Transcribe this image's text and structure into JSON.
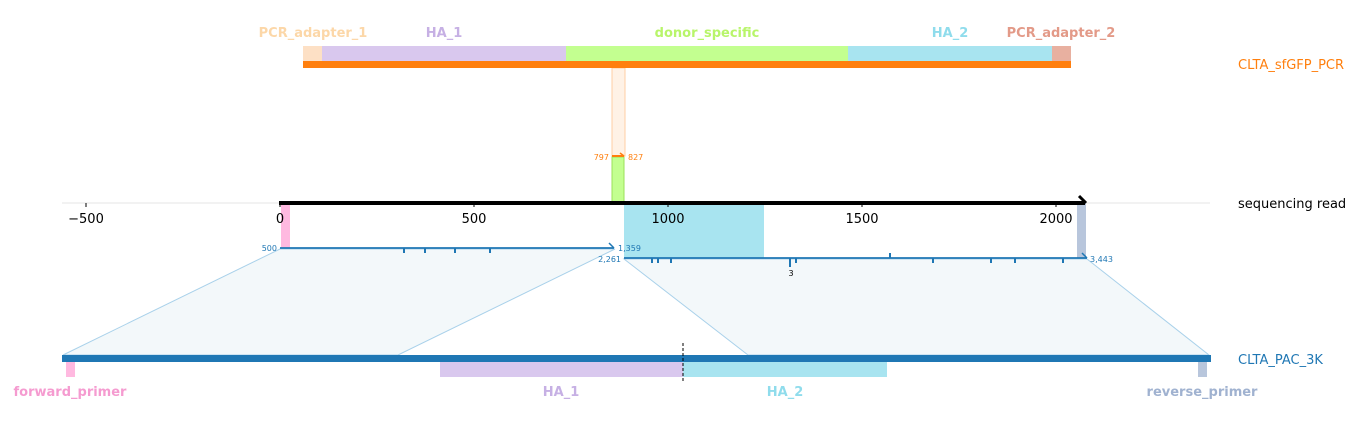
{
  "top_construct": {
    "name": "CLTA_sfGFP_PCR",
    "features": [
      {
        "id": "pcr_adapter_1",
        "label": "PCR_adapter_1"
      },
      {
        "id": "ha_1",
        "label": "HA_1"
      },
      {
        "id": "donor_specific",
        "label": "donor_specific"
      },
      {
        "id": "ha_2",
        "label": "HA_2"
      },
      {
        "id": "pcr_adapter_2",
        "label": "PCR_adapter_2"
      }
    ],
    "alignment_start": "797",
    "alignment_end": "827"
  },
  "sequencing_read": {
    "name": "sequencing read",
    "axis_ticks": [
      "−500",
      "0",
      "500",
      "1000",
      "1500",
      "2000"
    ],
    "alignment_1": {
      "start": "500",
      "end": "1,359"
    },
    "alignment_2": {
      "start": "2,261",
      "end": "3,443",
      "insertion_count": "3"
    }
  },
  "bottom_construct": {
    "name": "CLTA_PAC_3K",
    "features": [
      {
        "id": "forward_primer",
        "label": "forward_primer"
      },
      {
        "id": "ha_1",
        "label": "HA_1"
      },
      {
        "id": "ha_2",
        "label": "HA_2"
      },
      {
        "id": "reverse_primer",
        "label": "reverse_primer"
      }
    ]
  },
  "colors": {
    "orange": "#ff7f0e",
    "blue": "#1f77b4",
    "adapter_1": "#fde0c5",
    "ha_1": "#d9c8ee",
    "donor_specific": "#c3ff90",
    "ha_2": "#a8e4f0",
    "adapter_2": "#e8b0a0",
    "forward_primer": "#ffb9e0",
    "reverse_primer": "#b8c6dc",
    "label_adapter_1": "#fcd7a8",
    "label_ha_1": "#c6b0e4",
    "label_donor": "#b8f56a",
    "label_ha_2": "#8fdcec",
    "label_adapter_2": "#e39a88",
    "label_forward_primer": "#f59bd0",
    "label_reverse_primer": "#a0b2d0"
  }
}
